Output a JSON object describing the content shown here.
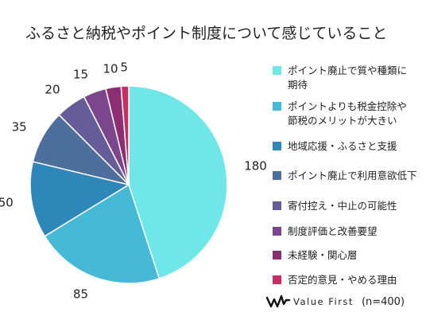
{
  "chart_data": {
    "type": "pie",
    "title": "ふるさと納税やポイント制度について感じていること",
    "slices": [
      {
        "label": "ポイント廃止で質や種類に期待",
        "value": 180,
        "color": "#6fe6e8"
      },
      {
        "label": "ポイントよりも税金控除や節税のメリットが大きい",
        "value": 85,
        "color": "#46b9d6"
      },
      {
        "label": "地域応援・ふるさと支援",
        "value": 50,
        "color": "#2f86b8"
      },
      {
        "label": "ポイント廃止で利用意欲低下",
        "value": 35,
        "color": "#4e6f9e"
      },
      {
        "label": "寄付控え・中止の可能性",
        "value": 20,
        "color": "#665c99"
      },
      {
        "label": "制度評価と改善要望",
        "value": 15,
        "color": "#7c468c"
      },
      {
        "label": "未経験・関心層",
        "value": 10,
        "color": "#8b2f72"
      },
      {
        "label": "否定的意見・やめる理由",
        "value": 5,
        "color": "#c92d66"
      }
    ],
    "value_labels": [
      "180",
      "85",
      "50",
      "35",
      "20",
      "15",
      "10",
      "5"
    ]
  },
  "legend": {
    "items": [
      {
        "line1": "ポイント廃止で質や種類に",
        "line2": "期待"
      },
      {
        "line1": "ポイントよりも税金控除や",
        "line2": "節税のメリットが大きい"
      },
      {
        "line1": "地域応援・ふるさと支援",
        "line2": ""
      },
      {
        "line1": "ポイント廃止で利用意欲低下",
        "line2": ""
      },
      {
        "line1": "寄付控え・中止の可能性",
        "line2": ""
      },
      {
        "line1": "制度評価と改善要望",
        "line2": ""
      },
      {
        "line1": "未経験・関心層",
        "line2": ""
      },
      {
        "line1": "否定的意見・やめる理由",
        "line2": ""
      }
    ]
  },
  "footer": {
    "brand": "Value First",
    "sample_size": "(n=400)",
    "logo_icon": "value-first-logo-icon"
  }
}
